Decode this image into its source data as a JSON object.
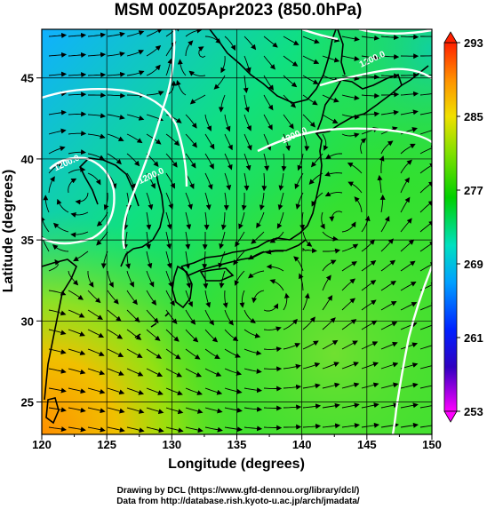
{
  "title": "MSM 00Z05Apr2023 (850.0hPa)",
  "map": {
    "x_axis_label": "Longitude (degrees)",
    "y_axis_label": "Latitude  (degrees)",
    "lon_range": [
      120,
      150
    ],
    "lat_range": [
      23,
      48
    ],
    "lon_ticks": [
      120,
      125,
      130,
      135,
      140,
      145,
      150
    ],
    "lat_ticks": [
      25,
      30,
      35,
      40,
      45
    ],
    "grid": true
  },
  "colorbar": {
    "ticks": [
      "293",
      "285",
      "277",
      "269",
      "261",
      "253"
    ],
    "min": 253,
    "max": 293
  },
  "contour_labels": [
    {
      "text": "1200.0",
      "lon": 122,
      "lat": 39.6
    },
    {
      "text": "1200.0",
      "lon": 128.5,
      "lat": 38.8
    },
    {
      "text": "1200.0",
      "lon": 145.5,
      "lat": 46
    },
    {
      "text": "1200.0",
      "lon": 139.5,
      "lat": 41.3
    }
  ],
  "credits": {
    "line1": "Drawing by DCL (https://www.gfd-dennou.org/library/dcl/)",
    "line2": "Data from http://database.rish.kyoto-u.ac.jp/arch/jmadata/"
  },
  "colors": {
    "cold": "#1060ff",
    "mid": "#20d020",
    "warm": "#ffa000",
    "contour": "#ffffff",
    "coast": "#000000"
  }
}
